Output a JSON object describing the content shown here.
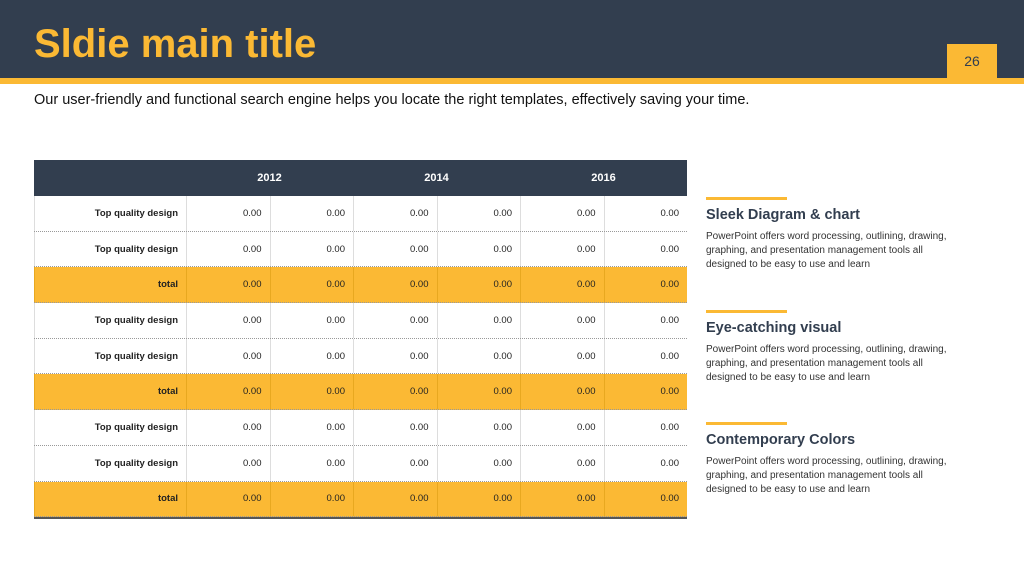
{
  "header": {
    "title": "Sldie main title",
    "page_number": "26"
  },
  "subtitle": "Our user-friendly and functional search engine helps you locate the right templates, effectively saving your time.",
  "table": {
    "columns": [
      "2012",
      "2014",
      "2016"
    ],
    "rows": [
      [
        "Top quality design",
        "0.00",
        "0.00",
        "0.00",
        "0.00",
        "0.00",
        "0.00"
      ],
      [
        "Top quality design",
        "0.00",
        "0.00",
        "0.00",
        "0.00",
        "0.00",
        "0.00"
      ],
      [
        "total",
        "0.00",
        "0.00",
        "0.00",
        "0.00",
        "0.00",
        "0.00"
      ],
      [
        "Top quality design",
        "0.00",
        "0.00",
        "0.00",
        "0.00",
        "0.00",
        "0.00"
      ],
      [
        "Top quality design",
        "0.00",
        "0.00",
        "0.00",
        "0.00",
        "0.00",
        "0.00"
      ],
      [
        "total",
        "0.00",
        "0.00",
        "0.00",
        "0.00",
        "0.00",
        "0.00"
      ],
      [
        "Top quality design",
        "0.00",
        "0.00",
        "0.00",
        "0.00",
        "0.00",
        "0.00"
      ],
      [
        "Top quality design",
        "0.00",
        "0.00",
        "0.00",
        "0.00",
        "0.00",
        "0.00"
      ],
      [
        "total",
        "0.00",
        "0.00",
        "0.00",
        "0.00",
        "0.00",
        "0.00"
      ]
    ]
  },
  "features": [
    {
      "heading": "Sleek Diagram & chart",
      "text": "PowerPoint offers word processing, outlining, drawing, graphing, and presentation management tools all designed to be easy to use and learn"
    },
    {
      "heading": "Eye-catching visual",
      "text": "PowerPoint offers word processing, outlining, drawing, graphing, and presentation management tools all designed to be easy to use and learn"
    },
    {
      "heading": "Contemporary Colors",
      "text": "PowerPoint offers word processing, outlining, drawing, graphing, and presentation management tools all designed to be easy to use and learn"
    }
  ]
}
